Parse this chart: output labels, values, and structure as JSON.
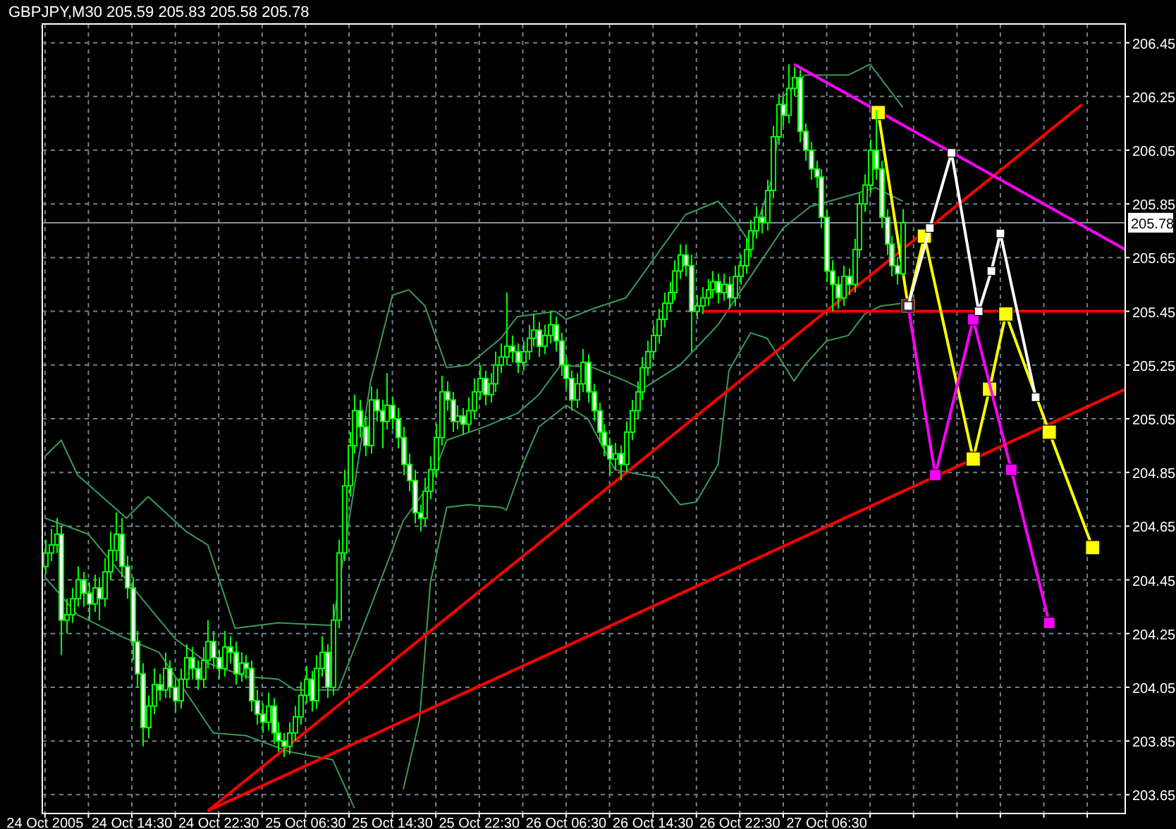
{
  "chart_data": {
    "type": "candlestick",
    "title": "GBPJPY,M30  205.59 205.83 205.58 205.78",
    "color": "#00ff00",
    "xlim": [
      "2005-10-24T06:15",
      "2005-10-28T10:00"
    ],
    "ylim": [
      203.58,
      206.52
    ],
    "yticks": [
      203.65,
      203.85,
      204.05,
      204.25,
      204.45,
      204.65,
      204.85,
      205.05,
      205.25,
      205.45,
      205.65,
      205.85,
      206.05,
      206.25,
      206.45
    ],
    "xticks": [
      {
        "value": "2005-10-24T06:30",
        "label": "24 Oct 2005"
      },
      {
        "value": "2005-10-24T10:30",
        "label": null
      },
      {
        "value": "2005-10-24T14:30",
        "label": "24 Oct 14:30"
      },
      {
        "value": "2005-10-24T18:30",
        "label": null
      },
      {
        "value": "2005-10-24T22:30",
        "label": "24 Oct 22:30"
      },
      {
        "value": "2005-10-25T02:30",
        "label": null
      },
      {
        "value": "2005-10-25T06:30",
        "label": "25 Oct 06:30"
      },
      {
        "value": "2005-10-25T10:30",
        "label": null
      },
      {
        "value": "2005-10-25T14:30",
        "label": "25 Oct 14:30"
      },
      {
        "value": "2005-10-25T18:30",
        "label": null
      },
      {
        "value": "2005-10-25T22:30",
        "label": "25 Oct 22:30"
      },
      {
        "value": "2005-10-26T02:30",
        "label": null
      },
      {
        "value": "2005-10-26T06:30",
        "label": "26 Oct 06:30"
      },
      {
        "value": "2005-10-26T10:30",
        "label": null
      },
      {
        "value": "2005-10-26T14:30",
        "label": "26 Oct 14:30"
      },
      {
        "value": "2005-10-26T18:30",
        "label": null
      },
      {
        "value": "2005-10-26T22:30",
        "label": "26 Oct 22:30"
      },
      {
        "value": "2005-10-27T02:30",
        "label": null
      },
      {
        "value": "2005-10-27T06:30",
        "label": "27 Oct 06:30"
      },
      {
        "value": "2005-10-27T10:30",
        "label": null
      },
      {
        "value": "2005-10-27T14:30",
        "label": null
      },
      {
        "value": "2005-10-27T18:30",
        "label": null
      },
      {
        "value": "2005-10-27T22:30",
        "label": null
      },
      {
        "value": "2005-10-28T02:30",
        "label": null
      },
      {
        "value": "2005-10-28T06:30",
        "label": null
      }
    ],
    "grid": true,
    "ref_lines": [
      {
        "axis": "y",
        "value": 205.78,
        "label": "205.78",
        "color": "#8090a0"
      }
    ],
    "x": [
      "2005-10-24T06:30",
      "2005-10-24T07:00",
      "2005-10-24T07:30",
      "2005-10-24T08:00",
      "2005-10-24T08:30",
      "2005-10-24T09:00",
      "2005-10-24T09:30",
      "2005-10-24T10:00",
      "2005-10-24T10:30",
      "2005-10-24T11:00",
      "2005-10-24T11:30",
      "2005-10-24T12:00",
      "2005-10-24T12:30",
      "2005-10-24T13:00",
      "2005-10-24T13:30",
      "2005-10-24T14:00",
      "2005-10-24T14:30",
      "2005-10-24T15:00",
      "2005-10-24T15:30",
      "2005-10-24T16:00",
      "2005-10-24T16:30",
      "2005-10-24T17:00",
      "2005-10-24T17:30",
      "2005-10-24T18:00",
      "2005-10-24T18:30",
      "2005-10-24T19:00",
      "2005-10-24T19:30",
      "2005-10-24T20:00",
      "2005-10-24T20:30",
      "2005-10-24T21:00",
      "2005-10-24T21:30",
      "2005-10-24T22:00",
      "2005-10-24T22:30",
      "2005-10-24T23:00",
      "2005-10-24T23:30",
      "2005-10-25T00:00",
      "2005-10-25T00:30",
      "2005-10-25T01:00",
      "2005-10-25T01:30",
      "2005-10-25T02:00",
      "2005-10-25T02:30",
      "2005-10-25T03:00",
      "2005-10-25T03:30",
      "2005-10-25T04:00",
      "2005-10-25T04:30",
      "2005-10-25T05:00",
      "2005-10-25T05:30",
      "2005-10-25T06:00",
      "2005-10-25T06:30",
      "2005-10-25T07:00",
      "2005-10-25T07:30",
      "2005-10-25T08:00",
      "2005-10-25T08:30",
      "2005-10-25T09:00",
      "2005-10-25T09:30",
      "2005-10-25T10:00",
      "2005-10-25T10:30",
      "2005-10-25T11:00",
      "2005-10-25T11:30",
      "2005-10-25T12:00",
      "2005-10-25T12:30",
      "2005-10-25T13:00",
      "2005-10-25T13:30",
      "2005-10-25T14:00",
      "2005-10-25T14:30",
      "2005-10-25T15:00",
      "2005-10-25T15:30",
      "2005-10-25T16:00",
      "2005-10-25T16:30",
      "2005-10-25T17:00",
      "2005-10-25T17:30",
      "2005-10-25T18:00",
      "2005-10-25T18:30",
      "2005-10-25T19:00",
      "2005-10-25T19:30",
      "2005-10-25T20:00",
      "2005-10-25T20:30",
      "2005-10-25T21:00",
      "2005-10-25T21:30",
      "2005-10-25T22:00",
      "2005-10-25T22:30",
      "2005-10-25T23:00",
      "2005-10-25T23:30",
      "2005-10-26T00:00",
      "2005-10-26T00:30",
      "2005-10-26T01:00",
      "2005-10-26T01:30",
      "2005-10-26T02:00",
      "2005-10-26T02:30",
      "2005-10-26T03:00",
      "2005-10-26T03:30",
      "2005-10-26T04:00",
      "2005-10-26T04:30",
      "2005-10-26T05:00",
      "2005-10-26T05:30",
      "2005-10-26T06:00",
      "2005-10-26T06:30",
      "2005-10-26T07:00",
      "2005-10-26T07:30",
      "2005-10-26T08:00",
      "2005-10-26T08:30",
      "2005-10-26T09:00",
      "2005-10-26T09:30",
      "2005-10-26T10:00",
      "2005-10-26T10:30",
      "2005-10-26T11:00",
      "2005-10-26T11:30",
      "2005-10-26T12:00",
      "2005-10-26T12:30",
      "2005-10-26T13:00",
      "2005-10-26T13:30",
      "2005-10-26T14:00",
      "2005-10-26T14:30",
      "2005-10-26T15:00",
      "2005-10-26T15:30",
      "2005-10-26T16:00",
      "2005-10-26T16:30",
      "2005-10-26T17:00",
      "2005-10-26T17:30",
      "2005-10-26T18:00",
      "2005-10-26T18:30",
      "2005-10-26T19:00",
      "2005-10-26T19:30",
      "2005-10-26T20:00",
      "2005-10-26T20:30",
      "2005-10-26T21:00",
      "2005-10-26T21:30",
      "2005-10-26T22:00",
      "2005-10-26T22:30",
      "2005-10-26T23:00",
      "2005-10-26T23:30",
      "2005-10-27T00:00",
      "2005-10-27T00:30",
      "2005-10-27T01:00",
      "2005-10-27T01:30",
      "2005-10-27T02:00",
      "2005-10-27T02:30",
      "2005-10-27T03:00",
      "2005-10-27T03:30",
      "2005-10-27T04:00",
      "2005-10-27T04:30",
      "2005-10-27T05:00",
      "2005-10-27T05:30",
      "2005-10-27T06:00",
      "2005-10-27T06:30",
      "2005-10-27T07:00",
      "2005-10-27T07:30",
      "2005-10-27T08:00",
      "2005-10-27T08:30",
      "2005-10-27T09:00",
      "2005-10-27T09:30",
      "2005-10-27T10:00",
      "2005-10-27T10:30",
      "2005-10-27T11:00",
      "2005-10-27T11:30",
      "2005-10-27T12:00",
      "2005-10-27T12:30",
      "2005-10-27T13:00",
      "2005-10-27T13:30"
    ],
    "ohlc": [
      [
        204.5,
        204.6,
        204.47,
        204.55
      ],
      [
        204.55,
        204.64,
        204.52,
        204.58
      ],
      [
        204.58,
        204.68,
        204.55,
        204.62
      ],
      [
        204.62,
        204.65,
        204.17,
        204.3
      ],
      [
        204.3,
        204.38,
        204.25,
        204.32
      ],
      [
        204.32,
        204.42,
        204.29,
        204.38
      ],
      [
        204.38,
        204.5,
        204.35,
        204.45
      ],
      [
        204.45,
        204.48,
        204.35,
        204.4
      ],
      [
        204.4,
        204.44,
        204.3,
        204.36
      ],
      [
        204.36,
        204.47,
        204.33,
        204.42
      ],
      [
        204.42,
        204.46,
        204.3,
        204.38
      ],
      [
        204.38,
        204.53,
        204.35,
        204.48
      ],
      [
        204.48,
        204.63,
        204.45,
        204.56
      ],
      [
        204.56,
        204.7,
        204.52,
        204.62
      ],
      [
        204.62,
        204.68,
        204.46,
        204.5
      ],
      [
        204.5,
        204.54,
        204.38,
        204.42
      ],
      [
        204.42,
        204.46,
        204.15,
        204.22
      ],
      [
        204.22,
        204.26,
        204.05,
        204.1
      ],
      [
        204.1,
        204.14,
        203.83,
        203.9
      ],
      [
        203.9,
        204.02,
        203.86,
        203.98
      ],
      [
        203.98,
        204.12,
        203.95,
        204.06
      ],
      [
        204.06,
        204.1,
        204.0,
        204.04
      ],
      [
        204.04,
        204.18,
        204.01,
        204.12
      ],
      [
        204.12,
        204.15,
        204.01,
        204.05
      ],
      [
        204.05,
        204.08,
        203.96,
        204.0
      ],
      [
        204.0,
        204.12,
        203.97,
        204.08
      ],
      [
        204.08,
        204.21,
        204.05,
        204.16
      ],
      [
        204.16,
        204.2,
        204.08,
        204.12
      ],
      [
        204.12,
        204.15,
        204.04,
        204.08
      ],
      [
        204.08,
        204.2,
        204.05,
        204.15
      ],
      [
        204.15,
        204.3,
        204.12,
        204.22
      ],
      [
        204.22,
        204.26,
        204.12,
        204.16
      ],
      [
        204.16,
        204.19,
        204.08,
        204.12
      ],
      [
        204.12,
        204.26,
        204.09,
        204.2
      ],
      [
        204.2,
        204.24,
        204.14,
        204.18
      ],
      [
        204.18,
        204.22,
        204.06,
        204.1
      ],
      [
        204.1,
        204.18,
        204.07,
        204.14
      ],
      [
        204.14,
        204.17,
        204.08,
        204.12
      ],
      [
        204.12,
        204.15,
        203.96,
        204.0
      ],
      [
        204.0,
        204.04,
        203.91,
        203.95
      ],
      [
        203.95,
        203.99,
        203.88,
        203.92
      ],
      [
        203.92,
        204.03,
        203.89,
        203.98
      ],
      [
        203.98,
        204.01,
        203.84,
        203.88
      ],
      [
        203.88,
        203.92,
        203.81,
        203.85
      ],
      [
        203.85,
        203.88,
        203.79,
        203.83
      ],
      [
        203.83,
        203.92,
        203.8,
        203.88
      ],
      [
        203.88,
        203.98,
        203.85,
        203.94
      ],
      [
        203.94,
        204.07,
        203.91,
        204.02
      ],
      [
        204.02,
        204.13,
        203.99,
        204.08
      ],
      [
        204.08,
        204.11,
        203.96,
        204.0
      ],
      [
        204.0,
        204.17,
        203.97,
        204.12
      ],
      [
        204.12,
        204.24,
        204.09,
        204.18
      ],
      [
        204.18,
        204.21,
        204.01,
        204.05
      ],
      [
        204.05,
        204.36,
        204.02,
        204.3
      ],
      [
        204.3,
        204.6,
        204.27,
        204.55
      ],
      [
        204.55,
        204.86,
        204.52,
        204.8
      ],
      [
        204.8,
        205.0,
        204.76,
        204.95
      ],
      [
        204.95,
        205.14,
        204.92,
        205.08
      ],
      [
        205.08,
        205.12,
        204.98,
        205.02
      ],
      [
        205.02,
        205.06,
        204.91,
        204.95
      ],
      [
        204.95,
        205.17,
        204.92,
        205.12
      ],
      [
        205.12,
        205.16,
        205.04,
        205.08
      ],
      [
        205.08,
        205.12,
        204.94,
        205.04
      ],
      [
        205.04,
        205.22,
        205.01,
        205.1
      ],
      [
        205.1,
        205.13,
        205.01,
        205.05
      ],
      [
        205.05,
        205.09,
        204.94,
        204.98
      ],
      [
        204.98,
        205.02,
        204.84,
        204.88
      ],
      [
        204.88,
        204.92,
        204.78,
        204.82
      ],
      [
        204.82,
        204.86,
        204.66,
        204.7
      ],
      [
        204.7,
        204.73,
        204.63,
        204.68
      ],
      [
        204.68,
        204.83,
        204.65,
        204.78
      ],
      [
        204.78,
        204.91,
        204.75,
        204.86
      ],
      [
        204.86,
        205.03,
        204.83,
        204.98
      ],
      [
        204.98,
        205.21,
        204.95,
        205.15
      ],
      [
        205.15,
        205.19,
        205.08,
        205.12
      ],
      [
        205.12,
        205.15,
        205.0,
        205.04
      ],
      [
        205.04,
        205.1,
        205.01,
        205.06
      ],
      [
        205.06,
        205.09,
        204.99,
        205.03
      ],
      [
        205.03,
        205.13,
        205.0,
        205.08
      ],
      [
        205.08,
        205.2,
        205.05,
        205.15
      ],
      [
        205.15,
        205.25,
        205.12,
        205.2
      ],
      [
        205.2,
        205.23,
        205.1,
        205.14
      ],
      [
        205.14,
        205.22,
        205.11,
        205.18
      ],
      [
        205.18,
        205.3,
        205.15,
        205.25
      ],
      [
        205.25,
        205.33,
        205.22,
        205.28
      ],
      [
        205.28,
        205.52,
        205.25,
        205.32
      ],
      [
        205.32,
        205.36,
        205.26,
        205.3
      ],
      [
        205.3,
        205.33,
        205.22,
        205.26
      ],
      [
        205.26,
        205.34,
        205.23,
        205.3
      ],
      [
        205.3,
        205.4,
        205.27,
        205.35
      ],
      [
        205.35,
        205.44,
        205.32,
        205.38
      ],
      [
        205.38,
        205.41,
        205.28,
        205.32
      ],
      [
        205.32,
        205.4,
        205.29,
        205.36
      ],
      [
        205.36,
        205.45,
        205.33,
        205.4
      ],
      [
        205.4,
        205.43,
        205.3,
        205.34
      ],
      [
        205.34,
        205.37,
        205.21,
        205.25
      ],
      [
        205.25,
        205.28,
        205.16,
        205.2
      ],
      [
        205.2,
        205.23,
        205.08,
        205.12
      ],
      [
        205.12,
        205.22,
        205.09,
        205.18
      ],
      [
        205.18,
        205.31,
        205.15,
        205.26
      ],
      [
        205.26,
        205.29,
        205.11,
        205.15
      ],
      [
        205.15,
        205.18,
        205.04,
        205.08
      ],
      [
        205.08,
        205.11,
        204.96,
        205.0
      ],
      [
        205.0,
        205.03,
        204.91,
        204.95
      ],
      [
        204.95,
        204.98,
        204.84,
        204.9
      ],
      [
        204.9,
        204.96,
        204.86,
        204.92
      ],
      [
        204.92,
        204.95,
        204.82,
        204.88
      ],
      [
        204.88,
        205.04,
        204.85,
        205.0
      ],
      [
        205.0,
        205.12,
        204.97,
        205.08
      ],
      [
        205.08,
        205.19,
        205.05,
        205.15
      ],
      [
        205.15,
        205.28,
        205.12,
        205.24
      ],
      [
        205.24,
        205.34,
        205.21,
        205.3
      ],
      [
        205.3,
        205.4,
        205.27,
        205.36
      ],
      [
        205.36,
        205.46,
        205.33,
        205.42
      ],
      [
        205.42,
        205.52,
        205.39,
        205.48
      ],
      [
        205.48,
        205.56,
        205.45,
        205.52
      ],
      [
        205.52,
        205.64,
        205.49,
        205.6
      ],
      [
        205.6,
        205.7,
        205.57,
        205.66
      ],
      [
        205.66,
        205.7,
        205.58,
        205.62
      ],
      [
        205.62,
        205.66,
        205.3,
        205.45
      ],
      [
        205.45,
        205.51,
        205.42,
        205.47
      ],
      [
        205.47,
        205.54,
        205.44,
        205.5
      ],
      [
        205.5,
        205.57,
        205.47,
        205.53
      ],
      [
        205.53,
        205.6,
        205.5,
        205.56
      ],
      [
        205.56,
        205.59,
        205.48,
        205.52
      ],
      [
        205.52,
        205.59,
        205.49,
        205.55
      ],
      [
        205.55,
        205.58,
        205.46,
        205.5
      ],
      [
        205.5,
        205.62,
        205.47,
        205.58
      ],
      [
        205.58,
        205.66,
        205.55,
        205.62
      ],
      [
        205.62,
        205.72,
        205.59,
        205.68
      ],
      [
        205.68,
        205.79,
        205.65,
        205.75
      ],
      [
        205.75,
        205.84,
        205.72,
        205.8
      ],
      [
        205.8,
        205.83,
        205.74,
        205.78
      ],
      [
        205.78,
        205.94,
        205.75,
        205.9
      ],
      [
        205.9,
        206.14,
        205.87,
        206.1
      ],
      [
        206.1,
        206.26,
        206.07,
        206.22
      ],
      [
        206.22,
        206.25,
        206.14,
        206.18
      ],
      [
        206.18,
        206.37,
        206.15,
        206.28
      ],
      [
        206.28,
        206.36,
        206.25,
        206.32
      ],
      [
        206.32,
        206.35,
        206.08,
        206.12
      ],
      [
        206.12,
        206.15,
        206.01,
        206.05
      ],
      [
        206.05,
        206.08,
        205.94,
        205.98
      ],
      [
        205.98,
        206.01,
        205.91,
        205.95
      ],
      [
        205.95,
        205.98,
        205.76,
        205.8
      ],
      [
        205.8,
        205.83,
        205.56,
        205.6
      ],
      [
        205.6,
        205.64,
        205.45,
        205.55
      ],
      [
        205.55,
        205.58,
        205.46,
        205.5
      ],
      [
        205.5,
        205.62,
        205.47,
        205.58
      ],
      [
        205.58,
        205.61,
        205.51,
        205.55
      ],
      [
        205.55,
        205.72,
        205.52,
        205.68
      ],
      [
        205.68,
        205.89,
        205.65,
        205.85
      ],
      [
        205.85,
        205.96,
        205.82,
        205.92
      ],
      [
        205.92,
        206.09,
        205.89,
        206.05
      ],
      [
        206.05,
        206.2,
        205.94,
        205.98
      ],
      [
        205.98,
        206.01,
        205.76,
        205.8
      ],
      [
        205.8,
        205.83,
        205.66,
        205.7
      ],
      [
        205.7,
        205.73,
        205.58,
        205.62
      ],
      [
        205.62,
        205.65,
        205.55,
        205.59
      ],
      [
        205.59,
        205.83,
        205.58,
        205.78
      ]
    ],
    "series": [
      {
        "type": "line",
        "color": "#3a9a5a",
        "x": [
          "2005-10-24T06:30",
          "2005-10-24T08:00",
          "2005-10-24T09:30",
          "2005-10-24T14:00",
          "2005-10-24T16:00",
          "2005-10-24T19:30",
          "2005-10-24T21:30",
          "2005-10-25T00:00",
          "2005-10-25T04:00",
          "2005-10-25T09:00",
          "2005-10-25T12:30",
          "2005-10-25T14:30",
          "2005-10-25T16:00",
          "2005-10-25T17:30",
          "2005-10-25T19:30",
          "2005-10-25T21:30",
          "2005-10-26T00:30",
          "2005-10-26T02:00",
          "2005-10-26T05:30",
          "2005-10-26T06:30",
          "2005-10-26T09:00",
          "2005-10-26T12:00",
          "2005-10-26T17:30",
          "2005-10-26T20:30",
          "2005-10-26T22:00",
          "2005-10-26T23:30",
          "2005-10-27T01:30",
          "2005-10-27T02:30",
          "2005-10-27T04:30",
          "2005-10-27T08:30",
          "2005-10-27T10:30",
          "2005-10-27T13:30"
        ],
        "values": [
          204.91,
          204.97,
          204.84,
          204.68,
          204.76,
          204.63,
          204.58,
          204.27,
          204.29,
          204.28,
          205.19,
          205.51,
          205.53,
          205.47,
          205.24,
          205.25,
          205.35,
          205.43,
          205.45,
          205.42,
          205.46,
          205.5,
          205.81,
          205.86,
          205.79,
          205.7,
          205.95,
          206.25,
          206.33,
          206.33,
          206.37,
          206.21
        ]
      },
      {
        "type": "line",
        "color": "#3a9a5a",
        "x": [
          "2005-10-24T06:30",
          "2005-10-24T10:30",
          "2005-10-24T14:00",
          "2005-10-24T18:30",
          "2005-10-24T21:30",
          "2005-10-25T01:00",
          "2005-10-25T04:00",
          "2005-10-25T05:30",
          "2005-10-25T09:30",
          "2005-10-25T12:30",
          "2005-10-25T15:30",
          "2005-10-25T18:00",
          "2005-10-25T19:30",
          "2005-10-25T23:00",
          "2005-10-26T02:00",
          "2005-10-26T04:00",
          "2005-10-26T06:00",
          "2005-10-26T09:00",
          "2005-10-26T12:00",
          "2005-10-26T13:30",
          "2005-10-26T17:00",
          "2005-10-26T20:30",
          "2005-10-27T00:00",
          "2005-10-27T02:30",
          "2005-10-27T05:00",
          "2005-10-27T08:30",
          "2005-10-27T11:00",
          "2005-10-27T13:30"
        ],
        "values": [
          204.68,
          204.62,
          204.45,
          204.23,
          204.14,
          204.09,
          204.08,
          204.04,
          204.04,
          204.35,
          204.67,
          204.81,
          204.97,
          205.02,
          205.07,
          205.14,
          205.25,
          205.24,
          205.19,
          205.16,
          205.25,
          205.4,
          205.61,
          205.76,
          205.84,
          205.88,
          205.91,
          205.86
        ]
      },
      {
        "type": "line",
        "color": "#3a9a5a",
        "x": [
          "2005-10-24T06:30",
          "2005-10-24T09:30",
          "2005-10-24T13:30",
          "2005-10-24T17:00",
          "2005-10-24T18:30",
          "2005-10-24T22:00",
          "2005-10-25T01:00",
          "2005-10-25T05:00",
          "2005-10-25T09:00",
          "2005-10-25T11:00",
          "2005-10-25T13:00",
          "2005-10-25T15:30",
          "2005-10-25T17:00",
          "2005-10-25T18:00",
          "2005-10-25T19:30",
          "2005-10-25T21:30",
          "2005-10-26T00:30",
          "2005-10-26T01:00",
          "2005-10-26T02:30",
          "2005-10-26T04:00",
          "2005-10-26T06:30",
          "2005-10-26T08:30",
          "2005-10-26T11:00",
          "2005-10-26T15:00",
          "2005-10-26T17:00",
          "2005-10-26T18:30",
          "2005-10-26T20:30",
          "2005-10-26T21:30",
          "2005-10-26T23:30",
          "2005-10-27T01:00",
          "2005-10-27T03:30",
          "2005-10-27T04:30",
          "2005-10-27T06:30",
          "2005-10-27T08:30",
          "2005-10-27T10:00",
          "2005-10-27T11:30",
          "2005-10-27T13:30"
        ],
        "values": [
          204.46,
          204.32,
          204.24,
          204.18,
          204.09,
          203.88,
          203.87,
          203.81,
          203.78,
          203.6,
          null,
          203.67,
          203.93,
          204.44,
          204.72,
          204.73,
          204.72,
          204.71,
          204.88,
          205.02,
          205.1,
          205.05,
          204.86,
          204.83,
          204.73,
          204.74,
          204.88,
          205.23,
          205.37,
          205.35,
          205.19,
          205.25,
          205.34,
          205.36,
          205.44,
          205.47,
          205.48
        ]
      },
      {
        "type": "line",
        "color": "#ff0000",
        "x": [
          "2005-10-24T21:30",
          "2005-10-28T06:00"
        ],
        "values": [
          203.59,
          206.22
        ]
      },
      {
        "type": "line",
        "color": "#ff0000",
        "x": [
          "2005-10-24T21:30",
          "2005-10-28T10:00"
        ],
        "values": [
          203.59,
          205.16
        ]
      },
      {
        "type": "line",
        "color": "#ff0000",
        "x": [
          "2005-10-26T19:00",
          "2005-10-28T10:00"
        ],
        "values": [
          205.45,
          205.45
        ]
      },
      {
        "type": "line",
        "color": "#ff00ff",
        "x": [
          "2005-10-27T03:30",
          "2005-10-28T10:00"
        ],
        "values": [
          206.37,
          205.68
        ]
      },
      {
        "type": "line",
        "color": "#ffff00",
        "marker": "square",
        "x": [
          "2005-10-27T11:15",
          "2005-10-27T14:00",
          "2005-10-27T15:30",
          "2005-10-27T20:00",
          "2005-10-27T21:30",
          "2005-10-27T23:00",
          "2005-10-28T03:00",
          "2005-10-28T07:00"
        ],
        "values": [
          206.19,
          205.47,
          205.73,
          204.9,
          205.16,
          205.44,
          205.0,
          204.57
        ]
      },
      {
        "type": "line",
        "color": "#ff00ff",
        "marker": "square",
        "x": [
          "2005-10-27T14:00",
          "2005-10-27T16:30",
          "2005-10-27T20:00",
          "2005-10-27T23:30",
          "2005-10-28T03:00"
        ],
        "values": [
          205.47,
          204.84,
          205.42,
          204.86,
          204.29
        ]
      },
      {
        "type": "line",
        "color": "#ffffff",
        "marker": "square",
        "x": [
          "2005-10-27T14:00",
          "2005-10-27T16:00",
          "2005-10-27T18:00",
          "2005-10-27T20:30",
          "2005-10-27T21:40",
          "2005-10-27T22:30",
          "2005-10-28T01:45"
        ],
        "values": [
          205.47,
          205.76,
          206.04,
          205.45,
          205.6,
          205.74,
          205.13
        ]
      }
    ]
  }
}
